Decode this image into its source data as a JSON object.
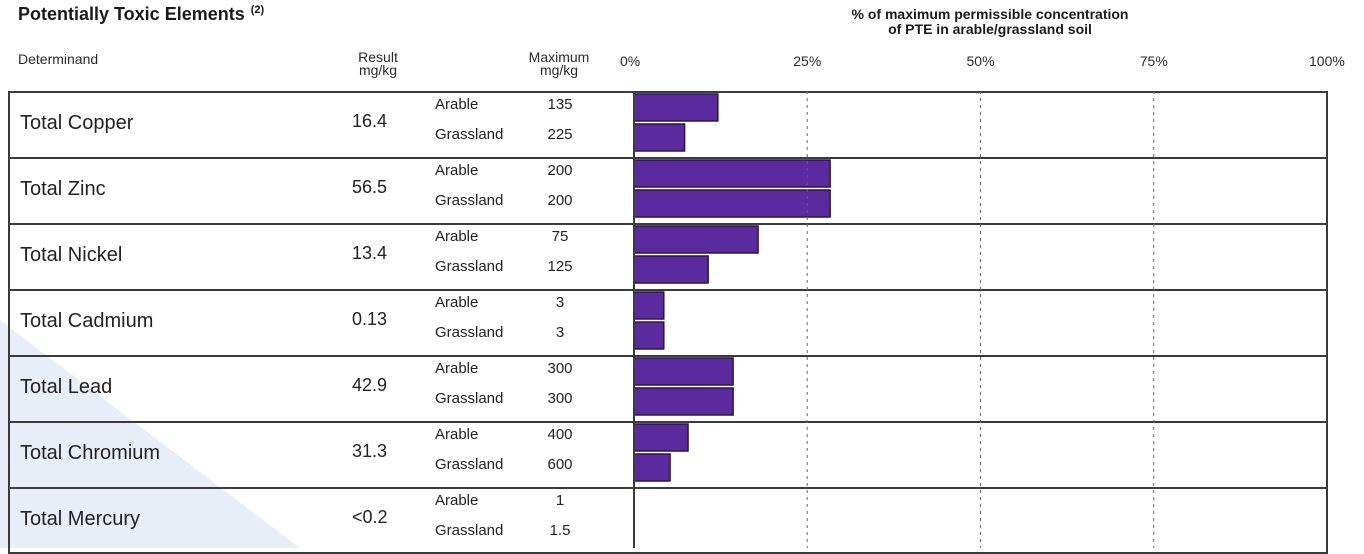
{
  "header": {
    "section_title": "Potentially Toxic Elements",
    "section_footnote": "(2)",
    "chart_title_line1": "% of maximum permissible concentration",
    "chart_title_line2": "of PTE in arable/grassland soil",
    "col_determinand": "Determinand",
    "col_result_line1": "Result",
    "col_result_line2": "mg/kg",
    "col_max_line1": "Maximum",
    "col_max_line2": "mg/kg"
  },
  "colors": {
    "bar": "#5a2a9e",
    "bar_edge": "#2a1450",
    "border": "#3b3b3b",
    "grid": "#666666"
  },
  "chart_data": {
    "type": "bar",
    "orientation": "horizontal",
    "title": "% of maximum permissible concentration of PTE in arable/grassland soil",
    "xlim": [
      0,
      100
    ],
    "xticks": [
      "0%",
      "25%",
      "50%",
      "75%",
      "100%"
    ],
    "grid": "dashed vertical at 25%, 50%, 75%",
    "rows": [
      {
        "name": "Total Copper",
        "result": "16.4",
        "sub": [
          {
            "land": "Arable",
            "max": "135",
            "pct": 12.1
          },
          {
            "land": "Grassland",
            "max": "225",
            "pct": 7.3
          }
        ]
      },
      {
        "name": "Total Zinc",
        "result": "56.5",
        "sub": [
          {
            "land": "Arable",
            "max": "200",
            "pct": 28.3
          },
          {
            "land": "Grassland",
            "max": "200",
            "pct": 28.3
          }
        ]
      },
      {
        "name": "Total Nickel",
        "result": "13.4",
        "sub": [
          {
            "land": "Arable",
            "max": "75",
            "pct": 17.9
          },
          {
            "land": "Grassland",
            "max": "125",
            "pct": 10.7
          }
        ]
      },
      {
        "name": "Total Cadmium",
        "result": "0.13",
        "sub": [
          {
            "land": "Arable",
            "max": "3",
            "pct": 4.3
          },
          {
            "land": "Grassland",
            "max": "3",
            "pct": 4.3
          }
        ]
      },
      {
        "name": "Total Lead",
        "result": "42.9",
        "sub": [
          {
            "land": "Arable",
            "max": "300",
            "pct": 14.3
          },
          {
            "land": "Grassland",
            "max": "300",
            "pct": 14.3
          }
        ]
      },
      {
        "name": "Total Chromium",
        "result": "31.3",
        "sub": [
          {
            "land": "Arable",
            "max": "400",
            "pct": 7.8
          },
          {
            "land": "Grassland",
            "max": "600",
            "pct": 5.2
          }
        ]
      },
      {
        "name": "Total Mercury",
        "result": "<0.2",
        "sub": [
          {
            "land": "Arable",
            "max": "1",
            "pct": 0
          },
          {
            "land": "Grassland",
            "max": "1.5",
            "pct": 0
          }
        ]
      }
    ]
  }
}
